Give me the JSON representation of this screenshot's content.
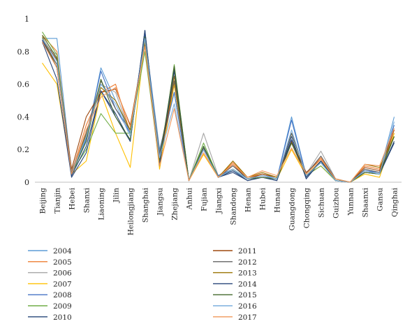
{
  "chart_data": {
    "type": "line",
    "title": "",
    "xlabel": "",
    "ylabel": "",
    "ylim": [
      0,
      1
    ],
    "yticks": [
      0,
      0.2,
      0.4,
      0.6,
      0.8,
      1
    ],
    "ytick_labels": [
      "0",
      "0.2",
      "0.4",
      "0.6",
      "0.8",
      "1"
    ],
    "grid": false,
    "legend_position": "bottom",
    "categories": [
      "Beijing",
      "Tianjin",
      "Hebei",
      "Shanxi",
      "Liaoning",
      "Jilin",
      "Heilongjiang",
      "Shanghai",
      "Jiangsu",
      "Zhejiang",
      "Anhui",
      "Fujian",
      "Jiangxi",
      "Shandong",
      "Henan",
      "Hubei",
      "Hunan",
      "Guangdong",
      "Chongqing",
      "Sichuan",
      "Guizhou",
      "Yunnan",
      "Shaanxi",
      "Gansu",
      "Qinghai"
    ],
    "series": [
      {
        "name": "2004",
        "color": "#5b9bd5",
        "values": [
          0.88,
          0.88,
          0.06,
          0.26,
          0.7,
          0.5,
          0.3,
          0.9,
          0.2,
          0.55,
          0.01,
          0.22,
          0.04,
          0.07,
          0.02,
          0.05,
          0.02,
          0.4,
          0.04,
          0.12,
          0.01,
          0.0,
          0.07,
          0.06,
          0.4
        ]
      },
      {
        "name": "2005",
        "color": "#ed7d31",
        "values": [
          0.9,
          0.8,
          0.06,
          0.35,
          0.55,
          0.6,
          0.3,
          0.85,
          0.15,
          0.6,
          0.01,
          0.2,
          0.03,
          0.12,
          0.03,
          0.05,
          0.03,
          0.3,
          0.05,
          0.15,
          0.02,
          0.0,
          0.1,
          0.08,
          0.3
        ]
      },
      {
        "name": "2006",
        "color": "#a5a5a5",
        "values": [
          0.85,
          0.78,
          0.07,
          0.3,
          0.6,
          0.55,
          0.3,
          0.88,
          0.15,
          0.6,
          0.01,
          0.3,
          0.04,
          0.1,
          0.02,
          0.04,
          0.02,
          0.3,
          0.05,
          0.19,
          0.02,
          0.0,
          0.08,
          0.06,
          0.3
        ]
      },
      {
        "name": "2007",
        "color": "#ffc000",
        "values": [
          0.73,
          0.6,
          0.05,
          0.13,
          0.55,
          0.3,
          0.09,
          0.87,
          0.08,
          0.6,
          0.01,
          0.17,
          0.03,
          0.08,
          0.02,
          0.04,
          0.02,
          0.2,
          0.04,
          0.1,
          0.01,
          0.0,
          0.05,
          0.03,
          0.3
        ]
      },
      {
        "name": "2008",
        "color": "#4472c4",
        "values": [
          0.88,
          0.72,
          0.05,
          0.27,
          0.68,
          0.45,
          0.3,
          0.9,
          0.17,
          0.55,
          0.01,
          0.21,
          0.04,
          0.08,
          0.02,
          0.04,
          0.02,
          0.38,
          0.04,
          0.12,
          0.01,
          0.0,
          0.07,
          0.06,
          0.35
        ]
      },
      {
        "name": "2009",
        "color": "#70ad47",
        "values": [
          0.92,
          0.78,
          0.06,
          0.2,
          0.42,
          0.3,
          0.3,
          0.8,
          0.1,
          0.72,
          0.01,
          0.24,
          0.03,
          0.08,
          0.02,
          0.03,
          0.02,
          0.3,
          0.04,
          0.1,
          0.01,
          0.0,
          0.06,
          0.05,
          0.25
        ]
      },
      {
        "name": "2010",
        "color": "#264478",
        "values": [
          0.86,
          0.63,
          0.03,
          0.18,
          0.56,
          0.4,
          0.25,
          0.93,
          0.1,
          0.7,
          0.01,
          0.2,
          0.03,
          0.06,
          0.01,
          0.03,
          0.01,
          0.28,
          0.02,
          0.13,
          0.01,
          0.0,
          0.06,
          0.05,
          0.24
        ]
      },
      {
        "name": "2011",
        "color": "#9e480e",
        "values": [
          0.88,
          0.75,
          0.08,
          0.4,
          0.55,
          0.57,
          0.35,
          0.85,
          0.12,
          0.62,
          0.01,
          0.2,
          0.03,
          0.11,
          0.02,
          0.05,
          0.03,
          0.25,
          0.06,
          0.14,
          0.02,
          0.0,
          0.09,
          0.07,
          0.32
        ]
      },
      {
        "name": "2012",
        "color": "#636363",
        "values": [
          0.87,
          0.72,
          0.06,
          0.3,
          0.62,
          0.45,
          0.32,
          0.87,
          0.18,
          0.62,
          0.01,
          0.21,
          0.03,
          0.1,
          0.02,
          0.04,
          0.02,
          0.3,
          0.05,
          0.16,
          0.02,
          0.0,
          0.08,
          0.06,
          0.28
        ]
      },
      {
        "name": "2013",
        "color": "#997300",
        "values": [
          0.89,
          0.7,
          0.05,
          0.29,
          0.58,
          0.5,
          0.32,
          0.86,
          0.14,
          0.65,
          0.01,
          0.2,
          0.03,
          0.13,
          0.03,
          0.06,
          0.03,
          0.24,
          0.04,
          0.13,
          0.02,
          0.0,
          0.11,
          0.09,
          0.28
        ]
      },
      {
        "name": "2014",
        "color": "#264478",
        "values": [
          0.87,
          0.7,
          0.04,
          0.22,
          0.56,
          0.42,
          0.25,
          0.93,
          0.12,
          0.68,
          0.01,
          0.2,
          0.03,
          0.07,
          0.01,
          0.03,
          0.01,
          0.26,
          0.03,
          0.13,
          0.01,
          0.0,
          0.07,
          0.05,
          0.25
        ]
      },
      {
        "name": "2015",
        "color": "#43682b",
        "values": [
          0.9,
          0.76,
          0.05,
          0.25,
          0.63,
          0.4,
          0.26,
          0.89,
          0.13,
          0.71,
          0.01,
          0.22,
          0.03,
          0.08,
          0.02,
          0.03,
          0.02,
          0.24,
          0.04,
          0.12,
          0.01,
          0.0,
          0.06,
          0.05,
          0.28
        ]
      },
      {
        "name": "2016",
        "color": "#7cafdd",
        "values": [
          0.88,
          0.74,
          0.05,
          0.28,
          0.6,
          0.48,
          0.28,
          0.88,
          0.15,
          0.48,
          0.01,
          0.2,
          0.03,
          0.08,
          0.02,
          0.04,
          0.02,
          0.32,
          0.04,
          0.12,
          0.01,
          0.0,
          0.07,
          0.05,
          0.37
        ]
      },
      {
        "name": "2017",
        "color": "#f1975a",
        "values": [
          0.86,
          0.7,
          0.05,
          0.32,
          0.52,
          0.58,
          0.34,
          0.83,
          0.1,
          0.45,
          0.01,
          0.18,
          0.03,
          0.11,
          0.03,
          0.07,
          0.04,
          0.21,
          0.05,
          0.14,
          0.02,
          0.0,
          0.11,
          0.1,
          0.33
        ]
      }
    ]
  }
}
